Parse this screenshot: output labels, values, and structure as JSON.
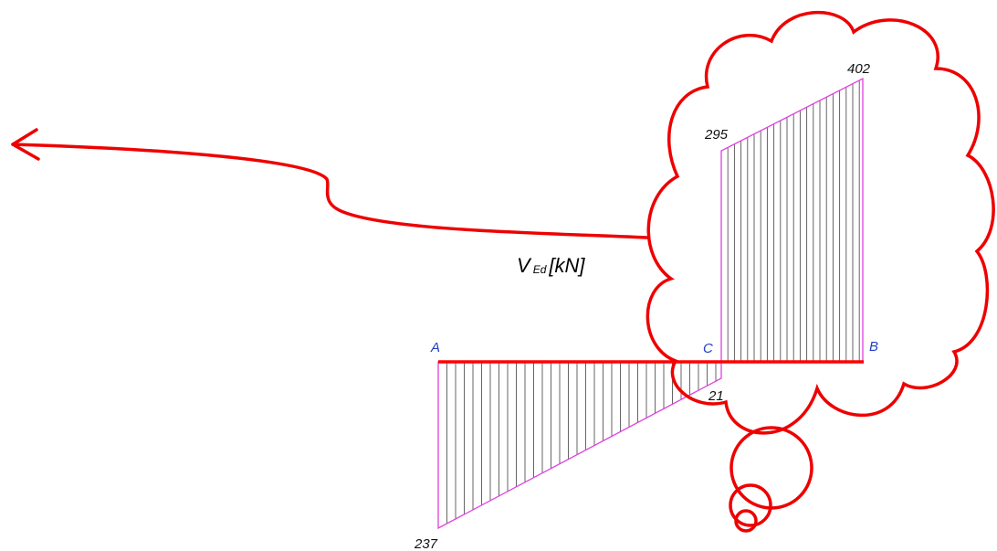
{
  "diagram": {
    "quantity_symbol": "V",
    "quantity_subscript": "Ed",
    "quantity_unit": "[kN]",
    "nodes": {
      "a": "A",
      "c": "C",
      "b": "B"
    },
    "values": {
      "at_a": "237",
      "left_of_c": "21",
      "right_of_c": "295",
      "at_b": "402"
    },
    "colors": {
      "outline": "#e040e0",
      "hatch": "#555555",
      "beam": "#ff0000",
      "annotation": "#ee0000",
      "node_label": "#2040c0"
    }
  }
}
